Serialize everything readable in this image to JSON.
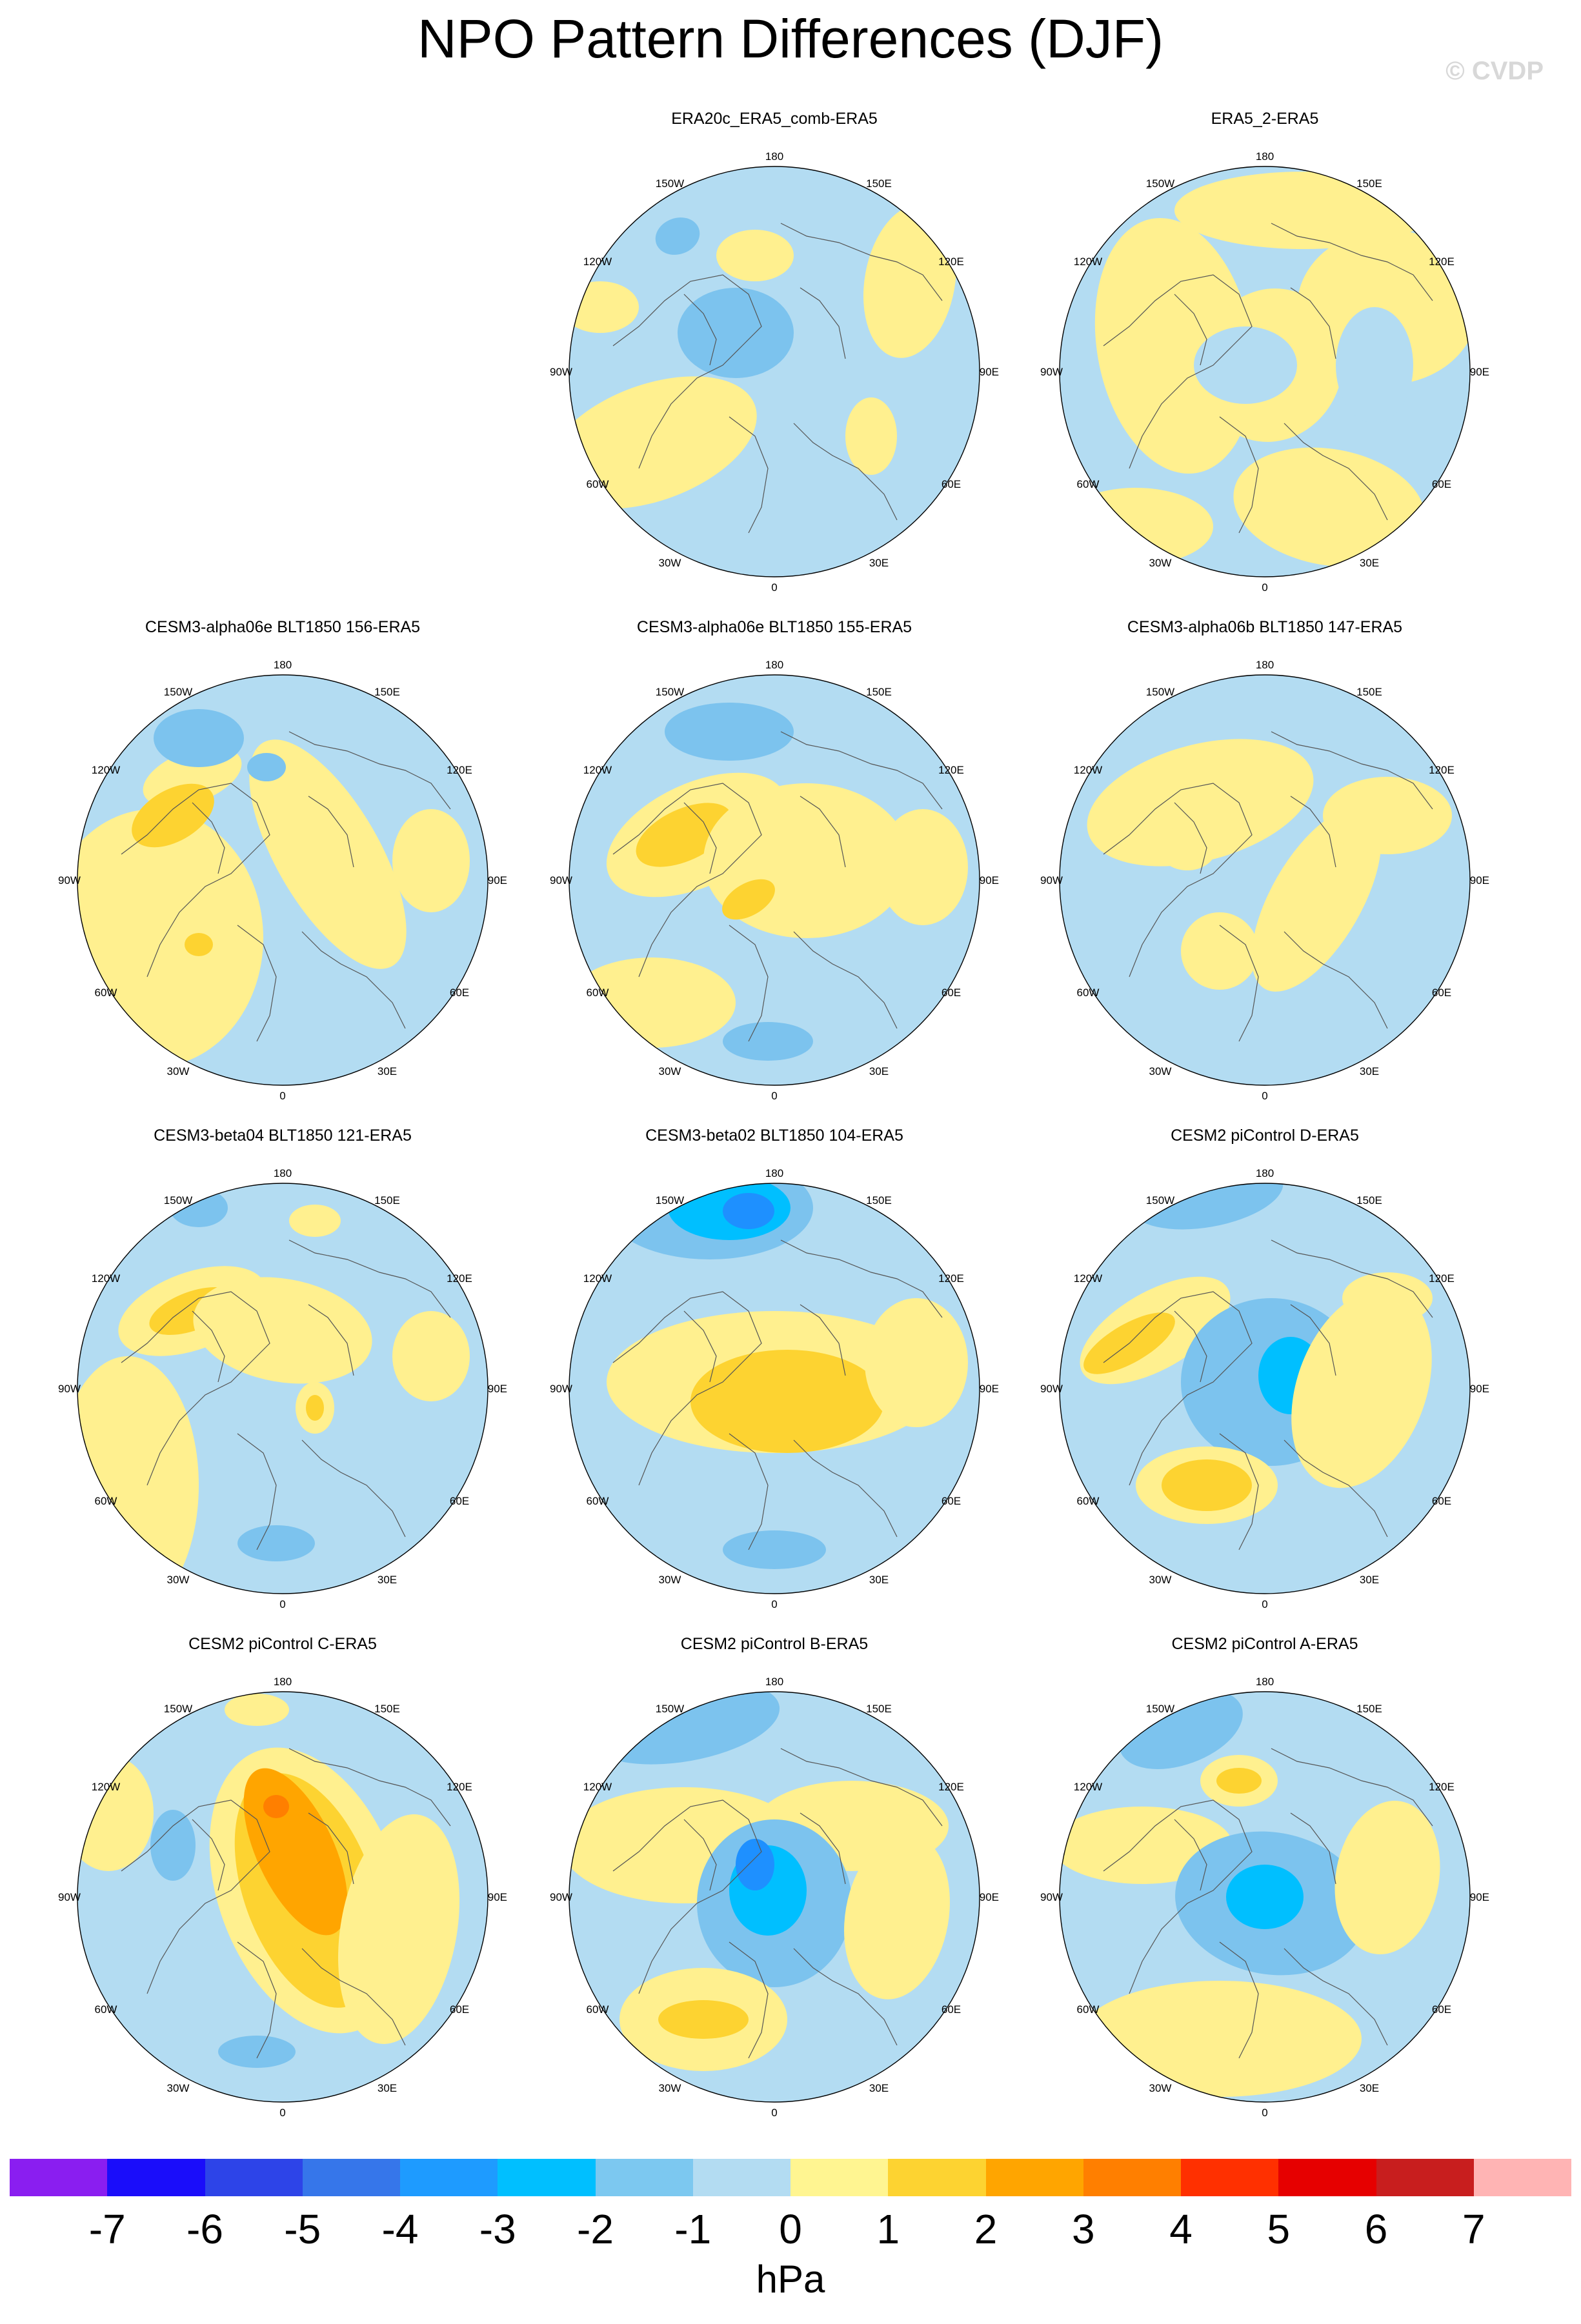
{
  "header": {
    "title": "NPO Pattern Differences (DJF)",
    "credit": "© CVDP"
  },
  "palette": {
    "ocean_light_blue": "#b3dcf2",
    "neg1": "#7cc3ee",
    "neg2": "#00bfff",
    "neg3": "#1e90ff",
    "pos1": "#fff08f",
    "pos2": "#fdd331",
    "pos3": "#ffa500",
    "pos4": "#ff7f00"
  },
  "map_labels": {
    "top": "180",
    "bottom": "0",
    "left": "90W",
    "right": "90E",
    "upper_left_1": "150W",
    "upper_left_2": "120W",
    "upper_right_1": "150E",
    "upper_right_2": "120E",
    "lower_left_1": "60W",
    "lower_left_2": "30W",
    "lower_right_1": "60E",
    "lower_right_2": "30E"
  },
  "panels": [
    {
      "title": "ERA20c_ERA5_comb-ERA5"
    },
    {
      "title": "ERA5_2-ERA5"
    },
    {
      "title": "CESM3-alpha06e BLT1850 156-ERA5"
    },
    {
      "title": "CESM3-alpha06e BLT1850 155-ERA5"
    },
    {
      "title": "CESM3-alpha06b BLT1850 147-ERA5"
    },
    {
      "title": "CESM3-beta04 BLT1850 121-ERA5"
    },
    {
      "title": "CESM3-beta02 BLT1850 104-ERA5"
    },
    {
      "title": "CESM2 piControl D-ERA5"
    },
    {
      "title": "CESM2 piControl C-ERA5"
    },
    {
      "title": "CESM2 piControl B-ERA5"
    },
    {
      "title": "CESM2 piControl A-ERA5"
    }
  ],
  "colorbar": {
    "colors": [
      "#8a1ef0",
      "#1a0dfa",
      "#2d44e8",
      "#3676ea",
      "#1e9bff",
      "#00bfff",
      "#7cc8f0",
      "#b3dcf2",
      "#fff591",
      "#fdd331",
      "#ffa500",
      "#ff7f00",
      "#ff3000",
      "#e60000",
      "#c81e1e",
      "#ffb4b4"
    ],
    "ticks": [
      "-7",
      "-6",
      "-5",
      "-4",
      "-3",
      "-2",
      "-1",
      "0",
      "1",
      "2",
      "3",
      "4",
      "5",
      "6",
      "7"
    ],
    "unit": "hPa"
  }
}
